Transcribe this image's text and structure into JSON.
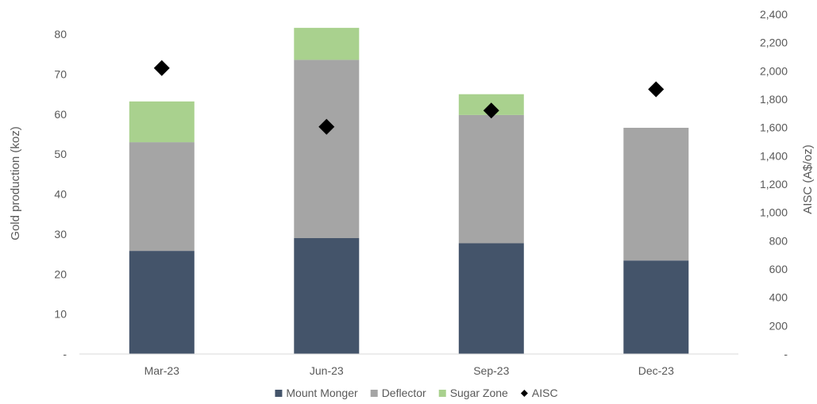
{
  "chart_data": {
    "type": "bar",
    "stacked": true,
    "categories": [
      "Mar-23",
      "Jun-23",
      "Sep-23",
      "Dec-23"
    ],
    "series": [
      {
        "name": "Mount Monger",
        "values": [
          25.8,
          29.0,
          27.7,
          23.4
        ],
        "color": "#44546a",
        "axis": "left"
      },
      {
        "name": "Deflector",
        "values": [
          27.2,
          44.6,
          32.1,
          33.2
        ],
        "color": "#a5a5a5",
        "axis": "left"
      },
      {
        "name": "Sugar Zone",
        "values": [
          10.2,
          8.0,
          5.2,
          0
        ],
        "color": "#a9d18e",
        "axis": "left"
      }
    ],
    "line_series": [
      {
        "name": "AISC",
        "values": [
          2020,
          1605,
          1720,
          1870
        ],
        "color": "#000000",
        "marker": "diamond",
        "axis": "right"
      }
    ],
    "ylabel": "Gold production (koz)",
    "y2label": "AISC (A$/oz)",
    "ylim": [
      0,
      85
    ],
    "y2lim": [
      0,
      2400
    ],
    "y_ticks": [
      0,
      10,
      20,
      30,
      40,
      50,
      60,
      70,
      80
    ],
    "y_tick_labels": [
      "-",
      "10",
      "20",
      "30",
      "40",
      "50",
      "60",
      "70",
      "80"
    ],
    "y2_ticks": [
      0,
      200,
      400,
      600,
      800,
      1000,
      1200,
      1400,
      1600,
      1800,
      2000,
      2200,
      2400
    ],
    "y2_tick_labels": [
      "-",
      "200",
      "400",
      "600",
      "800",
      "1,000",
      "1,200",
      "1,400",
      "1,600",
      "1,800",
      "2,000",
      "2,200",
      "2,400"
    ],
    "grid": false,
    "legend_position": "bottom"
  }
}
